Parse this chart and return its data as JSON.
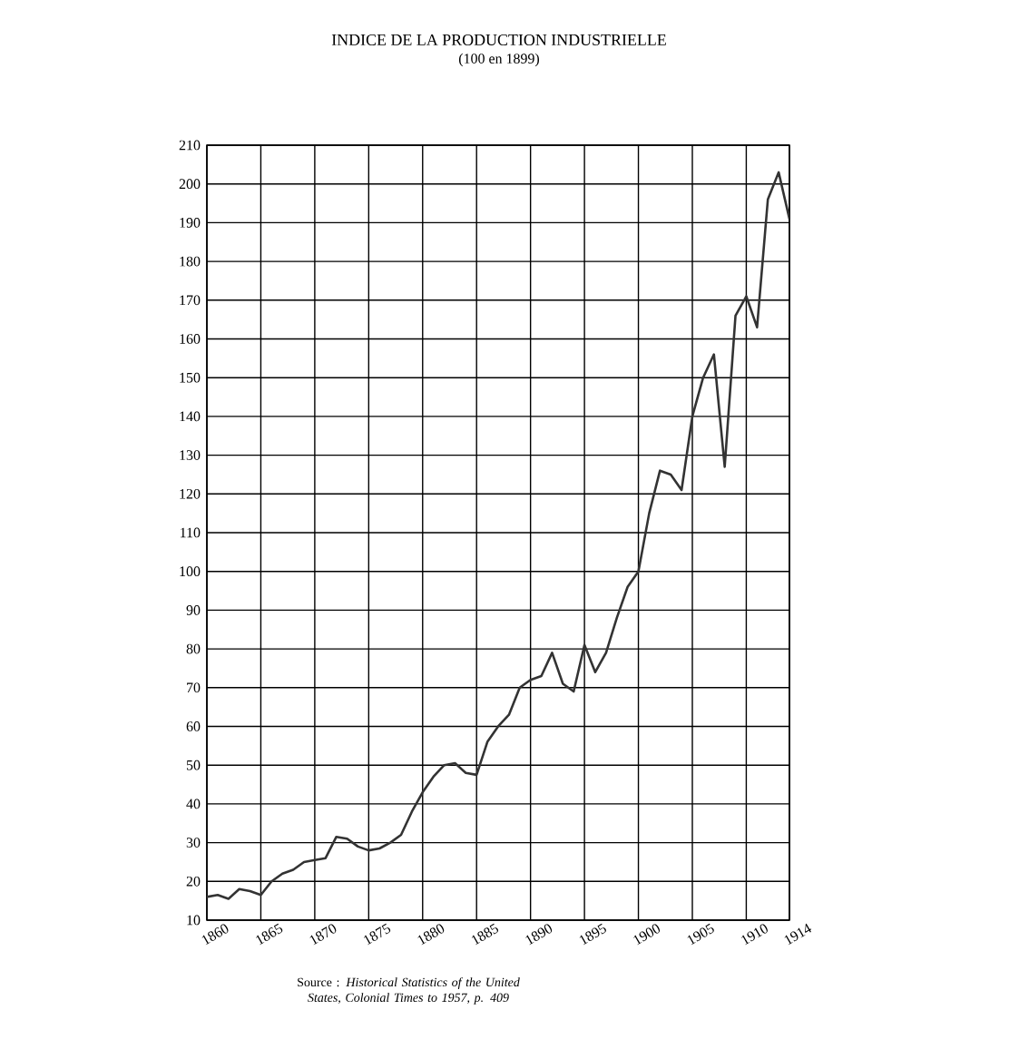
{
  "chart_data": {
    "type": "line",
    "title": "INDICE DE LA PRODUCTION INDUSTRIELLE",
    "subtitle": "(100 en 1899)",
    "annotations": [
      "Source : *Historical Statistics of the United States, Colonial Times to 1957, p. 409*"
    ],
    "x": [
      1860,
      1861,
      1862,
      1863,
      1864,
      1865,
      1866,
      1867,
      1868,
      1869,
      1870,
      1871,
      1872,
      1873,
      1874,
      1875,
      1876,
      1877,
      1878,
      1879,
      1880,
      1881,
      1882,
      1883,
      1884,
      1885,
      1886,
      1887,
      1888,
      1889,
      1890,
      1891,
      1892,
      1893,
      1894,
      1895,
      1896,
      1897,
      1898,
      1899,
      1900,
      1901,
      1902,
      1903,
      1904,
      1905,
      1906,
      1907,
      1908,
      1909,
      1910,
      1911,
      1912,
      1913,
      1914
    ],
    "series": [
      {
        "color": "#333333",
        "values": [
          16,
          16.5,
          15.5,
          18,
          17.5,
          16.5,
          20,
          22,
          23,
          25,
          25.5,
          26,
          31.5,
          31,
          29,
          28,
          28.5,
          30,
          32,
          38,
          43,
          47,
          50,
          50.5,
          48,
          47.5,
          56,
          60,
          63,
          70,
          72,
          73,
          79,
          71,
          69,
          81,
          74,
          79,
          88,
          96,
          100,
          115,
          126,
          125,
          121,
          140,
          150,
          156,
          127,
          166,
          171,
          163,
          196,
          203,
          191
        ]
      }
    ],
    "xlim": [
      1860,
      1914
    ],
    "ylim": [
      10,
      210
    ],
    "xticks": [
      1860,
      1865,
      1870,
      1875,
      1880,
      1885,
      1890,
      1895,
      1900,
      1905,
      1910,
      1914
    ],
    "yticks": [
      10,
      20,
      30,
      40,
      50,
      60,
      70,
      80,
      90,
      100,
      110,
      120,
      130,
      140,
      150,
      160,
      170,
      180,
      190,
      200,
      210
    ],
    "grid": true,
    "marker": "none",
    "line_style": "solid"
  }
}
